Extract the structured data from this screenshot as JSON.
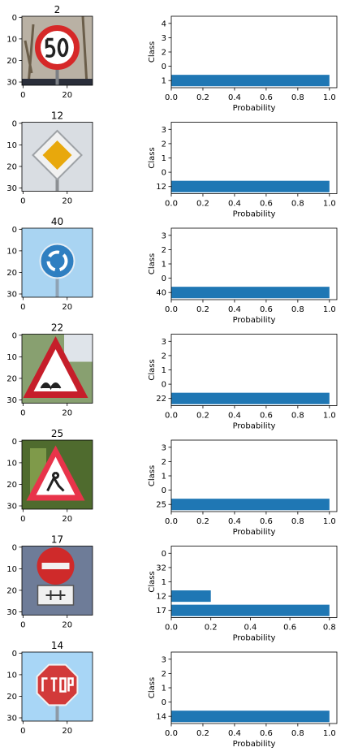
{
  "colors": {
    "bar": "#1f77b4",
    "axis": "#000000",
    "background": "#ffffff"
  },
  "image_axes": {
    "x_ticks": [
      "0",
      "20"
    ],
    "y_ticks": [
      "0",
      "10",
      "20",
      "30"
    ]
  },
  "rows": [
    {
      "image_title": "2",
      "sign_icon": "speed-limit-50-sign-icon"
    },
    {
      "image_title": "12",
      "sign_icon": "priority-road-sign-icon"
    },
    {
      "image_title": "40",
      "sign_icon": "roundabout-mandatory-sign-icon"
    },
    {
      "image_title": "22",
      "sign_icon": "bumpy-road-sign-icon"
    },
    {
      "image_title": "25",
      "sign_icon": "road-work-sign-icon"
    },
    {
      "image_title": "17",
      "sign_icon": "no-entry-sign-icon"
    },
    {
      "image_title": "14",
      "sign_icon": "stop-sign-icon"
    }
  ],
  "chart_data": [
    {
      "type": "bar",
      "orientation": "horizontal",
      "xlabel": "Probability",
      "ylabel": "Class",
      "categories": [
        "1",
        "0",
        "2",
        "3",
        "4"
      ],
      "values": [
        1.0,
        0.0,
        0.0,
        0.0,
        0.0
      ],
      "xlim": [
        0,
        1.0
      ],
      "x_ticks": [
        "0.0",
        "0.2",
        "0.4",
        "0.6",
        "0.8",
        "1.0"
      ]
    },
    {
      "type": "bar",
      "orientation": "horizontal",
      "xlabel": "Probability",
      "ylabel": "Class",
      "categories": [
        "12",
        "0",
        "1",
        "2",
        "3"
      ],
      "values": [
        1.0,
        0.0,
        0.0,
        0.0,
        0.0
      ],
      "xlim": [
        0,
        1.0
      ],
      "x_ticks": [
        "0.0",
        "0.2",
        "0.4",
        "0.6",
        "0.8",
        "1.0"
      ]
    },
    {
      "type": "bar",
      "orientation": "horizontal",
      "xlabel": "Probability",
      "ylabel": "Class",
      "categories": [
        "40",
        "0",
        "1",
        "2",
        "3"
      ],
      "values": [
        1.0,
        0.0,
        0.0,
        0.0,
        0.0
      ],
      "xlim": [
        0,
        1.0
      ],
      "x_ticks": [
        "0.0",
        "0.2",
        "0.4",
        "0.6",
        "0.8",
        "1.0"
      ]
    },
    {
      "type": "bar",
      "orientation": "horizontal",
      "xlabel": "Probability",
      "ylabel": "Class",
      "categories": [
        "22",
        "0",
        "1",
        "2",
        "3"
      ],
      "values": [
        1.0,
        0.0,
        0.0,
        0.0,
        0.0
      ],
      "xlim": [
        0,
        1.0
      ],
      "x_ticks": [
        "0.0",
        "0.2",
        "0.4",
        "0.6",
        "0.8",
        "1.0"
      ]
    },
    {
      "type": "bar",
      "orientation": "horizontal",
      "xlabel": "Probability",
      "ylabel": "Class",
      "categories": [
        "25",
        "0",
        "1",
        "2",
        "3"
      ],
      "values": [
        1.0,
        0.0,
        0.0,
        0.0,
        0.0
      ],
      "xlim": [
        0,
        1.0
      ],
      "x_ticks": [
        "0.0",
        "0.2",
        "0.4",
        "0.6",
        "0.8",
        "1.0"
      ]
    },
    {
      "type": "bar",
      "orientation": "horizontal",
      "xlabel": "Probability",
      "ylabel": "Class",
      "categories": [
        "17",
        "12",
        "1",
        "32",
        "0"
      ],
      "values": [
        0.8,
        0.2,
        0.0,
        0.0,
        0.0
      ],
      "xlim": [
        0,
        0.8
      ],
      "x_ticks": [
        "0.0",
        "0.2",
        "0.4",
        "0.6",
        "0.8"
      ]
    },
    {
      "type": "bar",
      "orientation": "horizontal",
      "xlabel": "Probability",
      "ylabel": "Class",
      "categories": [
        "14",
        "0",
        "1",
        "2",
        "3"
      ],
      "values": [
        1.0,
        0.0,
        0.0,
        0.0,
        0.0
      ],
      "xlim": [
        0,
        1.0
      ],
      "x_ticks": [
        "0.0",
        "0.2",
        "0.4",
        "0.6",
        "0.8",
        "1.0"
      ]
    }
  ]
}
